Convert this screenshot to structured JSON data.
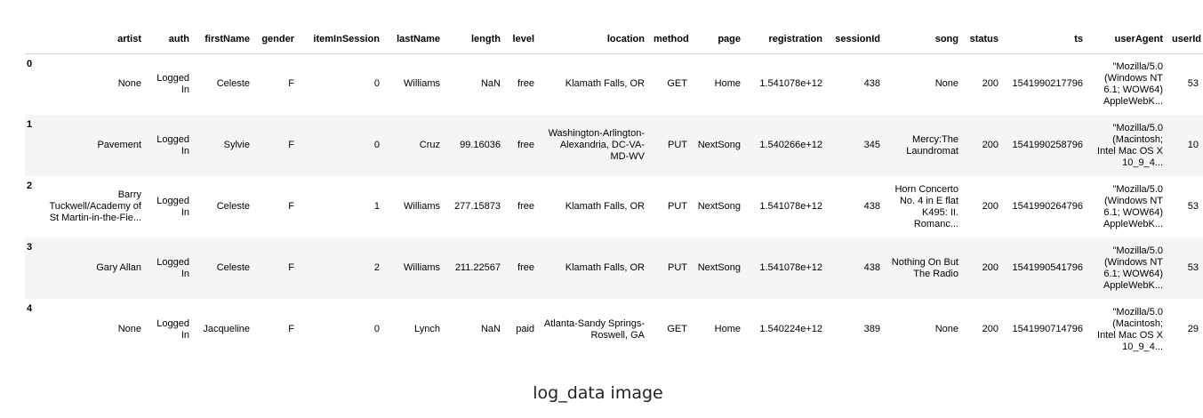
{
  "table": {
    "columns": [
      "artist",
      "auth",
      "firstName",
      "gender",
      "itemInSession",
      "lastName",
      "length",
      "level",
      "location",
      "method",
      "page",
      "registration",
      "sessionId",
      "song",
      "status",
      "ts",
      "userAgent",
      "userId"
    ],
    "rows": [
      {
        "index": "0",
        "cells": [
          "None",
          "Logged In",
          "Celeste",
          "F",
          "0",
          "Williams",
          "NaN",
          "free",
          "Klamath Falls, OR",
          "GET",
          "Home",
          "1.541078e+12",
          "438",
          "None",
          "200",
          "1541990217796",
          "\"Mozilla/5.0 (Windows NT 6.1; WOW64) AppleWebK...",
          "53"
        ]
      },
      {
        "index": "1",
        "cells": [
          "Pavement",
          "Logged In",
          "Sylvie",
          "F",
          "0",
          "Cruz",
          "99.16036",
          "free",
          "Washington-Arlington-Alexandria, DC-VA-MD-WV",
          "PUT",
          "NextSong",
          "1.540266e+12",
          "345",
          "Mercy:The Laundromat",
          "200",
          "1541990258796",
          "\"Mozilla/5.0 (Macintosh; Intel Mac OS X 10_9_4...",
          "10"
        ]
      },
      {
        "index": "2",
        "cells": [
          "Barry Tuckwell/Academy of St Martin-in-the-Fie...",
          "Logged In",
          "Celeste",
          "F",
          "1",
          "Williams",
          "277.15873",
          "free",
          "Klamath Falls, OR",
          "PUT",
          "NextSong",
          "1.541078e+12",
          "438",
          "Horn Concerto No. 4 in E flat K495: II. Romanc...",
          "200",
          "1541990264796",
          "\"Mozilla/5.0 (Windows NT 6.1; WOW64) AppleWebK...",
          "53"
        ]
      },
      {
        "index": "3",
        "cells": [
          "Gary Allan",
          "Logged In",
          "Celeste",
          "F",
          "2",
          "Williams",
          "211.22567",
          "free",
          "Klamath Falls, OR",
          "PUT",
          "NextSong",
          "1.541078e+12",
          "438",
          "Nothing On But The Radio",
          "200",
          "1541990541796",
          "\"Mozilla/5.0 (Windows NT 6.1; WOW64) AppleWebK...",
          "53"
        ]
      },
      {
        "index": "4",
        "cells": [
          "None",
          "Logged In",
          "Jacqueline",
          "F",
          "0",
          "Lynch",
          "NaN",
          "paid",
          "Atlanta-Sandy Springs-Roswell, GA",
          "GET",
          "Home",
          "1.540224e+12",
          "389",
          "None",
          "200",
          "1541990714796",
          "\"Mozilla/5.0 (Macintosh; Intel Mac OS X 10_9_4...",
          "29"
        ]
      }
    ]
  },
  "caption": "log_data image"
}
